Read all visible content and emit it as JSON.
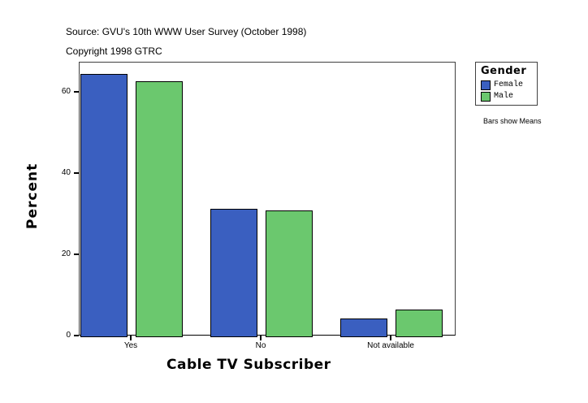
{
  "header": {
    "source": "Source: GVU's 10th WWW User Survey (October 1998)",
    "copyright": "Copyright 1998 GTRC"
  },
  "legend": {
    "title": "Gender",
    "items": [
      {
        "label": "Female",
        "color": "#3A5FC0"
      },
      {
        "label": "Male",
        "color": "#6BC86E"
      }
    ]
  },
  "note": "Bars show Means",
  "chart_data": {
    "type": "bar",
    "title": "",
    "subtitle": "Source: GVU's 10th WWW User Survey (October 1998) / Copyright 1998 GTRC",
    "xlabel": "Cable TV Subscriber",
    "ylabel": "Percent",
    "categories": [
      "Yes",
      "No",
      "Not available"
    ],
    "series": [
      {
        "name": "Female",
        "color": "#3A5FC0",
        "values": [
          64.6,
          31.4,
          4.4
        ]
      },
      {
        "name": "Male",
        "color": "#6BC86E",
        "values": [
          62.8,
          31.0,
          6.6
        ]
      }
    ],
    "yticks": [
      0,
      20,
      40,
      60
    ],
    "ylim": [
      0,
      67.4
    ],
    "grid": false,
    "legend_position": "right",
    "legend_title": "Gender",
    "annotation": "Bars show Means"
  }
}
